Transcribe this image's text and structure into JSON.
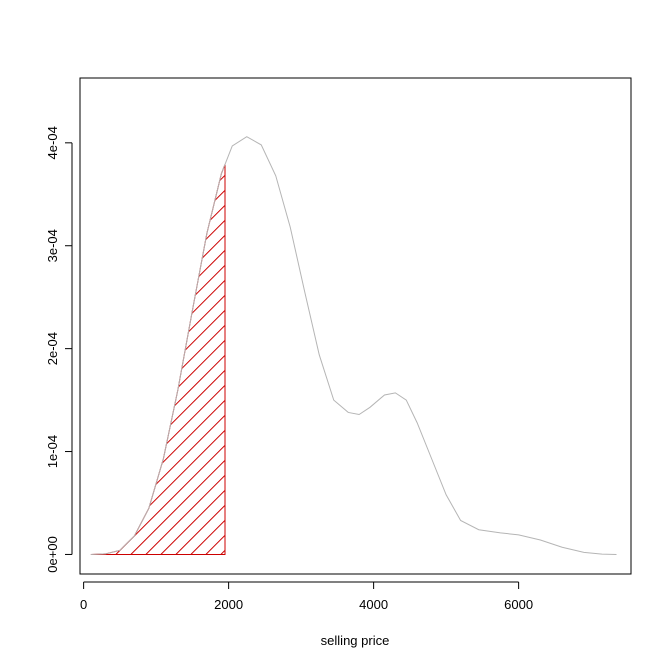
{
  "chart_data": {
    "type": "area",
    "title": "",
    "xlabel": "selling price",
    "ylabel": "",
    "xlim": [
      -50,
      7550
    ],
    "ylim": [
      -1.9e-05,
      0.000463
    ],
    "grid": false,
    "x_ticks": [
      0,
      2000,
      4000,
      6000
    ],
    "x_tick_labels": [
      "0",
      "2000",
      "4000",
      "6000"
    ],
    "y_ticks": [
      0,
      0.0001,
      0.0002,
      0.0003,
      0.0004
    ],
    "y_tick_labels": [
      "0e+00",
      "1e-04",
      "2e-04",
      "3e-04",
      "4e-04"
    ],
    "series": [
      {
        "kind": "density-line",
        "color": "#b5b5b5",
        "points": [
          [
            100,
            0.0
          ],
          [
            300,
            5e-07
          ],
          [
            500,
            4e-06
          ],
          [
            700,
            1.8e-05
          ],
          [
            900,
            4.5e-05
          ],
          [
            1100,
            9.3e-05
          ],
          [
            1300,
            0.00016
          ],
          [
            1500,
            0.000237
          ],
          [
            1700,
            0.000312
          ],
          [
            1900,
            0.00037
          ],
          [
            2050,
            0.000397
          ],
          [
            2250,
            0.000406
          ],
          [
            2450,
            0.000398
          ],
          [
            2650,
            0.000368
          ],
          [
            2850,
            0.000318
          ],
          [
            3050,
            0.000255
          ],
          [
            3250,
            0.000194
          ],
          [
            3450,
            0.00015
          ],
          [
            3650,
            0.000138
          ],
          [
            3800,
            0.000136
          ],
          [
            3950,
            0.000143
          ],
          [
            4150,
            0.000155
          ],
          [
            4300,
            0.000157
          ],
          [
            4450,
            0.00015
          ],
          [
            4600,
            0.000128
          ],
          [
            4800,
            9.3e-05
          ],
          [
            5000,
            5.8e-05
          ],
          [
            5200,
            3.3e-05
          ],
          [
            5450,
            2.4e-05
          ],
          [
            5750,
            2.1e-05
          ],
          [
            6000,
            1.9e-05
          ],
          [
            6300,
            1.4e-05
          ],
          [
            6600,
            7e-06
          ],
          [
            6900,
            2e-06
          ],
          [
            7150,
            3e-07
          ],
          [
            7350,
            0.0
          ]
        ]
      },
      {
        "kind": "hatched-region",
        "color": "#cc0000",
        "x_from": 100,
        "x_to": 1950
      }
    ]
  }
}
